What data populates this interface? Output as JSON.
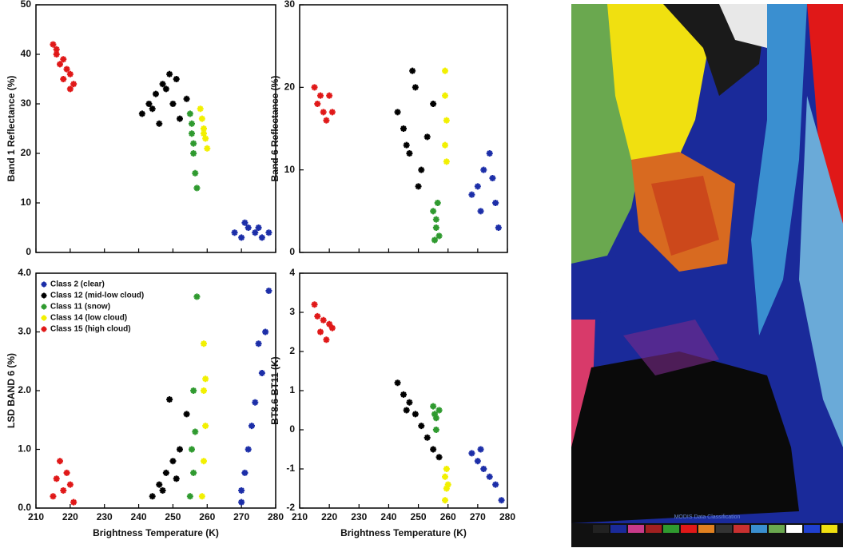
{
  "chart_data": [
    {
      "type": "scatter",
      "ylabel": "Band 1 Reflectance (%)",
      "xlim": [
        210,
        280
      ],
      "xticks": [
        210,
        220,
        230,
        240,
        250,
        260,
        270,
        280
      ],
      "ylim": [
        0,
        50
      ],
      "yticks": [
        0,
        10,
        20,
        30,
        40,
        50
      ],
      "series": [
        {
          "color": "#e01818",
          "x": [
            215,
            216,
            217,
            218,
            219,
            220,
            221,
            216,
            218,
            220
          ],
          "values": [
            42,
            40,
            38,
            39,
            37,
            36,
            34,
            41,
            35,
            33
          ]
        },
        {
          "color": "#000000",
          "x": [
            241,
            243,
            245,
            247,
            249,
            250,
            252,
            254,
            246,
            244,
            248,
            251
          ],
          "values": [
            28,
            30,
            32,
            34,
            36,
            30,
            27,
            31,
            26,
            29,
            33,
            35
          ]
        },
        {
          "color": "#2f9a2f",
          "x": [
            255,
            255.5,
            256,
            256.5,
            257,
            255.5,
            256
          ],
          "values": [
            28,
            24,
            20,
            16,
            13,
            26,
            22
          ]
        },
        {
          "color": "#f2f000",
          "x": [
            258,
            258.5,
            259,
            259.5,
            260,
            259
          ],
          "values": [
            29,
            27,
            25,
            23,
            21,
            24
          ]
        },
        {
          "color": "#1c2ea8",
          "x": [
            268,
            270,
            272,
            274,
            276,
            278,
            271,
            275
          ],
          "values": [
            4,
            3,
            5,
            4,
            3,
            4,
            6,
            5
          ]
        }
      ]
    },
    {
      "type": "scatter",
      "ylabel": "Band 6 Reflectance (%)",
      "xlim": [
        210,
        280
      ],
      "xticks": [
        210,
        220,
        230,
        240,
        250,
        260,
        270,
        280
      ],
      "ylim": [
        0,
        30
      ],
      "yticks": [
        0,
        10,
        20,
        30
      ],
      "series": [
        {
          "color": "#e01818",
          "x": [
            215,
            216,
            217,
            218,
            219,
            220,
            221
          ],
          "values": [
            20,
            18,
            19,
            17,
            16,
            19,
            17
          ]
        },
        {
          "color": "#000000",
          "x": [
            243,
            245,
            247,
            249,
            251,
            253,
            255,
            250,
            246,
            248
          ],
          "values": [
            17,
            15,
            12,
            20,
            10,
            14,
            18,
            8,
            13,
            22
          ]
        },
        {
          "color": "#2f9a2f",
          "x": [
            255,
            256,
            257,
            256,
            255.5,
            256.5
          ],
          "values": [
            5,
            3,
            2,
            4,
            1.5,
            6
          ]
        },
        {
          "color": "#f2f000",
          "x": [
            259,
            259,
            259.5,
            259,
            259.5
          ],
          "values": [
            22,
            19,
            16,
            13,
            11
          ]
        },
        {
          "color": "#1c2ea8",
          "x": [
            268,
            270,
            272,
            274,
            276,
            277,
            271,
            275
          ],
          "values": [
            7,
            8,
            10,
            12,
            6,
            3,
            5,
            9
          ]
        }
      ]
    },
    {
      "type": "scatter",
      "xlabel": "Brightness Temperature (K)",
      "ylabel": "LSD BAND 6 (%)",
      "legend": "upper left",
      "xlim": [
        210,
        280
      ],
      "xticks": [
        210,
        220,
        230,
        240,
        250,
        260,
        270,
        280
      ],
      "ylim": [
        0,
        4
      ],
      "yticks": [
        {
          "value": 0,
          "label": "0.0"
        },
        {
          "value": 1,
          "label": "1.0"
        },
        {
          "value": 2,
          "label": "2.0"
        },
        {
          "value": 3,
          "label": "3.0"
        },
        {
          "value": 4,
          "label": "4.0"
        }
      ],
      "series": [
        {
          "name": "Class 2 (clear)",
          "color": "#1c2ea8",
          "x": [
            270,
            272,
            274,
            276,
            277,
            278,
            271,
            273,
            275,
            270
          ],
          "values": [
            0.3,
            1.0,
            1.8,
            2.3,
            3.0,
            3.7,
            0.6,
            1.4,
            2.8,
            0.1
          ]
        },
        {
          "name": "Class 12 (mid-low cloud)",
          "color": "#000000",
          "x": [
            244,
            246,
            248,
            250,
            252,
            254,
            249,
            247,
            251
          ],
          "values": [
            0.2,
            0.4,
            0.6,
            0.8,
            1.0,
            1.6,
            1.85,
            0.3,
            0.5
          ]
        },
        {
          "name": "Class 11 (snow)",
          "color": "#2f9a2f",
          "x": [
            255,
            256,
            255.5,
            256.5,
            256,
            257
          ],
          "values": [
            0.2,
            0.6,
            1.0,
            1.3,
            2.0,
            3.6
          ]
        },
        {
          "name": "Class 14 (low cloud)",
          "color": "#f2f000",
          "x": [
            258.5,
            259,
            259.5,
            259,
            259.5,
            259
          ],
          "values": [
            0.2,
            0.8,
            1.4,
            2.0,
            2.2,
            2.8
          ]
        },
        {
          "name": "Class 15 (high cloud)",
          "color": "#e01818",
          "x": [
            215,
            216,
            217,
            218,
            219,
            220,
            221
          ],
          "values": [
            0.2,
            0.5,
            0.8,
            0.3,
            0.6,
            0.4,
            0.1
          ]
        }
      ]
    },
    {
      "type": "scatter",
      "xlabel": "Brightness Temperature (K)",
      "ylabel": "BT8.6-BT11 (K)",
      "xlim": [
        210,
        280
      ],
      "xticks": [
        210,
        220,
        230,
        240,
        250,
        260,
        270,
        280
      ],
      "ylim": [
        -2,
        4
      ],
      "yticks": [
        -2,
        -1,
        0,
        1,
        2,
        3,
        4
      ],
      "series": [
        {
          "color": "#e01818",
          "x": [
            215,
            216,
            217,
            218,
            219,
            220,
            221
          ],
          "values": [
            3.2,
            2.9,
            2.5,
            2.8,
            2.3,
            2.7,
            2.6
          ]
        },
        {
          "color": "#000000",
          "x": [
            243,
            245,
            247,
            249,
            251,
            253,
            255,
            257,
            246
          ],
          "values": [
            1.2,
            0.9,
            0.7,
            0.4,
            0.1,
            -0.2,
            -0.5,
            -0.7,
            0.5
          ]
        },
        {
          "color": "#2f9a2f",
          "x": [
            255,
            256,
            257,
            256,
            255.5
          ],
          "values": [
            0.6,
            0.3,
            0.5,
            0.0,
            0.4
          ]
        },
        {
          "color": "#f2f000",
          "x": [
            259,
            259.5,
            259,
            260,
            259.5
          ],
          "values": [
            -1.2,
            -1.5,
            -1.8,
            -1.4,
            -1.0
          ]
        },
        {
          "color": "#1c2ea8",
          "x": [
            268,
            270,
            272,
            274,
            276,
            278,
            271
          ],
          "values": [
            -0.6,
            -0.8,
            -1.0,
            -1.2,
            -1.4,
            -1.8,
            -0.5
          ]
        }
      ]
    }
  ],
  "image_caption": "MODIS Data Classification"
}
